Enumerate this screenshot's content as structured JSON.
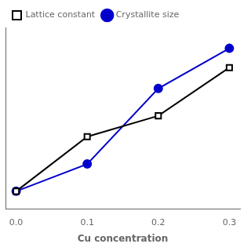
{
  "chart_data": {
    "type": "line",
    "x_label": "Cu concentration",
    "series": [
      {
        "name": "Lattice constant",
        "color": "#000000",
        "marker": "square",
        "x": [
          0.0,
          0.1,
          0.2,
          0.3
        ],
        "values": [
          0.08,
          0.42,
          0.55,
          0.85
        ]
      },
      {
        "name": "Crystallite size",
        "color": "#0000cc",
        "marker": "circle",
        "x": [
          0.0,
          0.1,
          0.2,
          0.3
        ],
        "values": [
          0.08,
          0.25,
          0.72,
          0.97
        ]
      }
    ],
    "xlim": [
      -0.015,
      0.315
    ],
    "xticks": [
      {
        "value": 0.0,
        "label": "0.0"
      },
      0.1,
      0.2,
      0.3
    ],
    "ylim": [
      -0.03,
      1.1
    ],
    "tick_labels": "x",
    "grid": false,
    "legend": "upper left"
  }
}
